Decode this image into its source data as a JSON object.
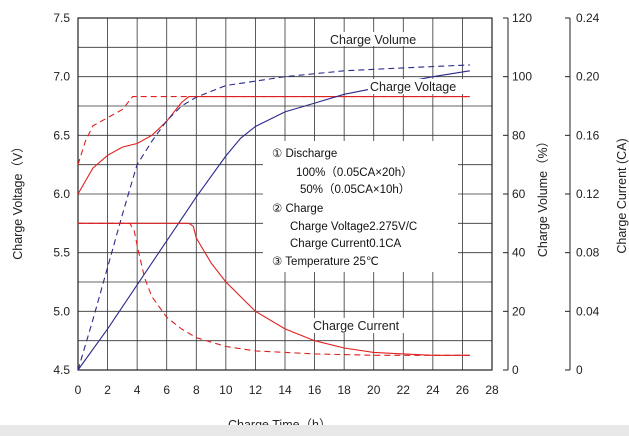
{
  "chart_data": {
    "type": "line",
    "xlabel": "Charge Time（h）",
    "ylabel_left": "Charge Voltage（V）",
    "ylabel_right1": "Charge Volume（%）",
    "ylabel_right2": "Charge Current (CA)",
    "xlim": [
      0,
      28
    ],
    "ylim_left": [
      4.5,
      7.5
    ],
    "ylim_right1": [
      0,
      120
    ],
    "ylim_right2": [
      0,
      0.24
    ],
    "x_ticks": [
      "0",
      "2",
      "4",
      "6",
      "8",
      "10",
      "12",
      "14",
      "16",
      "18",
      "20",
      "22",
      "24",
      "26",
      "28"
    ],
    "y_left_ticks": [
      "4.5",
      "5.0",
      "5.5",
      "6.0",
      "6.5",
      "7.0",
      "7.5"
    ],
    "y_right1_ticks": [
      "0",
      "20",
      "40",
      "60",
      "80",
      "100",
      "120"
    ],
    "y_right2_ticks": [
      "0",
      "0.04",
      "0.08",
      "0.12",
      "0.16",
      "0.20",
      "0.24"
    ],
    "grid": true,
    "series": [
      {
        "name": "Charge Voltage",
        "variant": "100% (0.05CA×20h)",
        "axis": "left",
        "color": "#e02020",
        "style": "solid",
        "x": [
          0,
          1,
          2,
          3,
          4,
          5,
          6,
          7,
          7.5,
          8,
          10,
          14,
          20,
          26.5
        ],
        "y": [
          6.0,
          6.22,
          6.33,
          6.4,
          6.43,
          6.5,
          6.62,
          6.78,
          6.83,
          6.83,
          6.83,
          6.83,
          6.83,
          6.83
        ]
      },
      {
        "name": "Charge Voltage",
        "variant": "50% (0.05CA×10h)",
        "axis": "left",
        "color": "#e02020",
        "style": "dashed",
        "x": [
          0,
          0.5,
          1,
          2,
          3,
          3.5,
          3.7,
          4,
          6,
          8,
          10,
          14,
          20,
          26.5
        ],
        "y": [
          6.25,
          6.45,
          6.58,
          6.65,
          6.72,
          6.8,
          6.83,
          6.83,
          6.83,
          6.83,
          6.83,
          6.83,
          6.83,
          6.83
        ]
      },
      {
        "name": "Charge Volume",
        "variant": "100% (0.05CA×20h)",
        "axis": "right1",
        "color": "#2a2a8a",
        "style": "solid",
        "x": [
          0,
          2,
          4,
          6,
          8,
          10,
          11,
          12,
          14,
          16,
          18,
          20,
          22,
          24,
          26.5
        ],
        "y": [
          0,
          14,
          29,
          44,
          59,
          73,
          79,
          83,
          88,
          91,
          94,
          96,
          98,
          100,
          102
        ]
      },
      {
        "name": "Charge Volume",
        "variant": "50% (0.05CA×10h)",
        "axis": "right1",
        "color": "#2a2a8a",
        "style": "dashed",
        "x": [
          0,
          1,
          2,
          3,
          3.7,
          4,
          5,
          6,
          7,
          8,
          10,
          14,
          18,
          22,
          26.5
        ],
        "y": [
          0,
          17,
          35,
          53,
          65,
          70,
          78,
          85,
          90,
          93,
          97,
          100,
          102,
          103,
          104
        ]
      },
      {
        "name": "Charge Current",
        "variant": "100% (0.05CA×20h)",
        "axis": "right2",
        "color": "#e02020",
        "style": "solid",
        "x": [
          0,
          2,
          4,
          6,
          7.5,
          7.8,
          8,
          9,
          10,
          12,
          14,
          16,
          18,
          20,
          22,
          24,
          26.5
        ],
        "y": [
          0.1,
          0.1,
          0.1,
          0.1,
          0.1,
          0.098,
          0.09,
          0.073,
          0.06,
          0.04,
          0.028,
          0.02,
          0.015,
          0.012,
          0.011,
          0.01,
          0.01
        ]
      },
      {
        "name": "Charge Current",
        "variant": "50% (0.05CA×10h)",
        "axis": "right2",
        "color": "#e02020",
        "style": "dashed",
        "x": [
          0,
          2,
          3.5,
          3.8,
          4,
          4.5,
          5,
          6,
          7,
          8,
          10,
          12,
          16,
          20,
          24,
          26.5
        ],
        "y": [
          0.1,
          0.1,
          0.1,
          0.095,
          0.085,
          0.063,
          0.05,
          0.036,
          0.028,
          0.022,
          0.016,
          0.013,
          0.011,
          0.01,
          0.01,
          0.01
        ]
      }
    ],
    "curve_labels": {
      "volume": "Charge Volume",
      "voltage": "Charge Voltage",
      "current": "Charge Current"
    },
    "annotation": [
      "①  Discharge",
      "100%（0.05CA×20h）",
      "50%（0.05CA×10h）",
      "②  Charge",
      "Charge Voltage2.275V/C",
      "Charge Current0.1CA",
      "③  Temperature 25℃"
    ],
    "colors": {
      "red": "#e02020",
      "blue": "#2a2a8a",
      "grid": "#333333"
    }
  }
}
